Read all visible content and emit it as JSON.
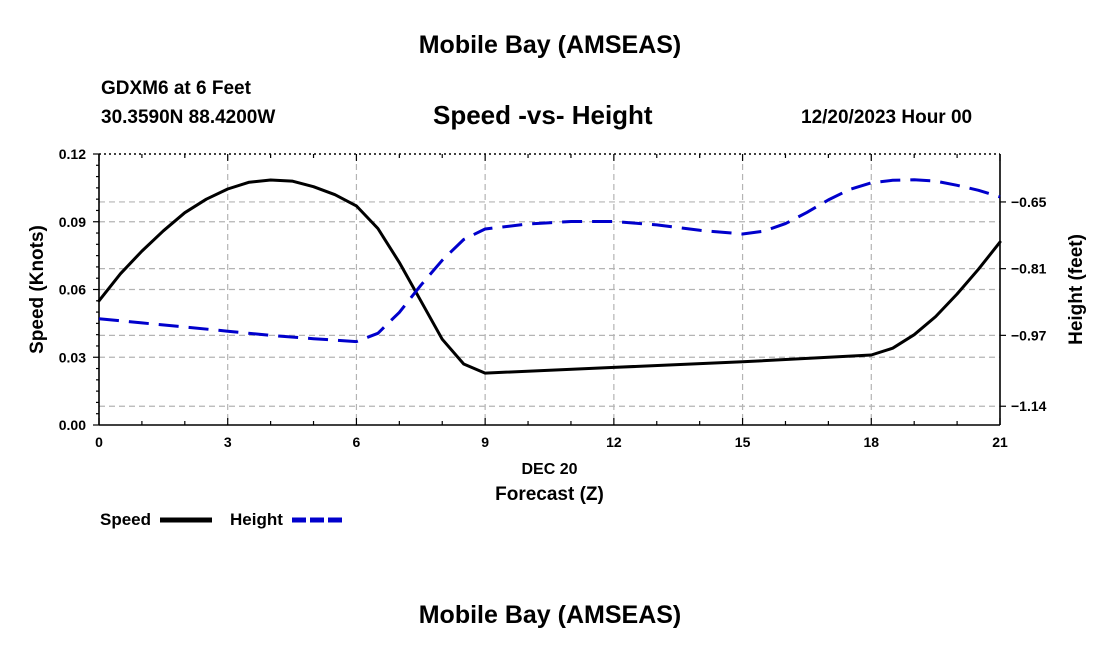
{
  "header": {
    "title": "Mobile Bay (AMSEAS)",
    "station": "GDXM6 at 6 Feet",
    "coordinates": "30.3590N  88.4200W",
    "chart_title": "Speed -vs- Height",
    "datetime": "12/20/2023 Hour 00"
  },
  "footer": {
    "title": "Mobile Bay (AMSEAS)"
  },
  "chart_data": {
    "type": "line",
    "title": "Speed -vs- Height",
    "xlabel": "Forecast (Z)",
    "xdate_label": "DEC 20",
    "ylabel": "Speed (Knots)",
    "y2label": "Height (feet)",
    "xlim": [
      0,
      21
    ],
    "ylim": [
      0,
      0.12
    ],
    "y2lim": [
      -1.185,
      -0.535
    ],
    "xticks": [
      0,
      3,
      6,
      9,
      12,
      15,
      18,
      21
    ],
    "xtick_labels": [
      "0",
      "3",
      "6",
      "9",
      "12",
      "15",
      "18",
      "21"
    ],
    "yticks": [
      0,
      0.03,
      0.06,
      0.09,
      0.12
    ],
    "ytick_labels": [
      "0.00",
      "0.03",
      "0.06",
      "0.09",
      "0.12"
    ],
    "y2ticks": [
      -0.65,
      -0.81,
      -0.97,
      -1.14
    ],
    "y2tick_labels": [
      "−0.65",
      "−0.81",
      "−0.97",
      "−1.14"
    ],
    "grid": true,
    "legend": "bottom-left",
    "series": [
      {
        "name": "Speed",
        "axis": "left",
        "color": "#000000",
        "dash": "solid",
        "x": [
          0,
          0.5,
          1,
          1.5,
          2,
          2.5,
          3,
          3.5,
          4,
          4.5,
          5,
          5.5,
          6,
          6.5,
          7,
          7.5,
          8,
          8.5,
          9,
          12,
          15,
          18,
          18.5,
          19,
          19.5,
          20,
          20.5,
          21
        ],
        "values": [
          0.055,
          0.067,
          0.077,
          0.086,
          0.094,
          0.1,
          0.1045,
          0.1075,
          0.1085,
          0.108,
          0.1055,
          0.102,
          0.097,
          0.087,
          0.072,
          0.055,
          0.038,
          0.027,
          0.023,
          0.0255,
          0.028,
          0.031,
          0.034,
          0.04,
          0.048,
          0.058,
          0.069,
          0.081
        ]
      },
      {
        "name": "Height",
        "axis": "right",
        "color": "#0000cc",
        "dash": "dashed",
        "x": [
          0,
          1,
          2,
          3,
          4,
          5,
          6,
          6.5,
          7,
          7.5,
          8,
          8.5,
          9,
          10,
          11,
          12,
          13,
          14,
          15,
          15.5,
          16,
          16.5,
          17,
          17.5,
          18,
          18.5,
          19,
          19.5,
          20,
          20.5,
          21
        ],
        "values": [
          -0.93,
          -0.94,
          -0.95,
          -0.96,
          -0.97,
          -0.978,
          -0.985,
          -0.965,
          -0.915,
          -0.85,
          -0.79,
          -0.74,
          -0.715,
          -0.703,
          -0.697,
          -0.697,
          -0.705,
          -0.718,
          -0.727,
          -0.72,
          -0.702,
          -0.675,
          -0.645,
          -0.62,
          -0.604,
          -0.598,
          -0.597,
          -0.6,
          -0.61,
          -0.622,
          -0.638
        ]
      }
    ]
  }
}
